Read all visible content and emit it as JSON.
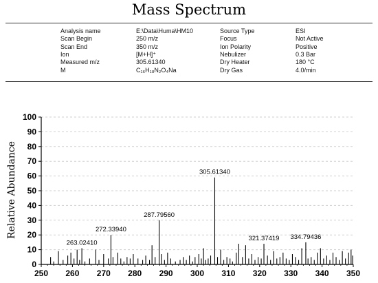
{
  "header": {
    "title": "Mass Spectrum"
  },
  "info": [
    [
      "Analysis name",
      "E:\\Data\\Huma\\HM10",
      "Source Type",
      "ESI"
    ],
    [
      "Scan Begin",
      "250 m/z",
      "Focus",
      "Not Active"
    ],
    [
      "Scan End",
      "350 m/z",
      "Ion Polarity",
      "Positive"
    ],
    [
      "Ion",
      "[M+H]⁺",
      "Nebulizer",
      "0.3 Bar"
    ],
    [
      "Measured m/z",
      "305.61340",
      "Dry Heater",
      "180 °C"
    ],
    [
      "M",
      "C₁₆H₁₈N₂O₄Na",
      "Dry Gas",
      "4.0/min"
    ]
  ],
  "chart_data": {
    "type": "bar",
    "title": "",
    "xlabel": "",
    "ylabel": "Relative Abundance",
    "xlim": [
      250,
      350
    ],
    "ylim": [
      0,
      100
    ],
    "xticks": [
      250,
      260,
      270,
      280,
      290,
      300,
      310,
      320,
      330,
      340,
      350
    ],
    "yticks": [
      0,
      10,
      20,
      30,
      40,
      50,
      60,
      70,
      80,
      90,
      100
    ],
    "peaks": [
      [
        253,
        5
      ],
      [
        254,
        2
      ],
      [
        255.5,
        9
      ],
      [
        257,
        3
      ],
      [
        258.5,
        6
      ],
      [
        259.5,
        8
      ],
      [
        260.5,
        4
      ],
      [
        261.5,
        10
      ],
      [
        262.3,
        3
      ],
      [
        263.02,
        11
      ],
      [
        264,
        2
      ],
      [
        265.5,
        4
      ],
      [
        267.5,
        10
      ],
      [
        268.5,
        3
      ],
      [
        270,
        7
      ],
      [
        271.5,
        4
      ],
      [
        272.34,
        20
      ],
      [
        273,
        5
      ],
      [
        274.5,
        8
      ],
      [
        275.5,
        4
      ],
      [
        276.5,
        2
      ],
      [
        277.5,
        5
      ],
      [
        278.5,
        4
      ],
      [
        279.5,
        7
      ],
      [
        281,
        4
      ],
      [
        282.5,
        3
      ],
      [
        283.5,
        6
      ],
      [
        284.7,
        3
      ],
      [
        285.5,
        13
      ],
      [
        286.5,
        5
      ],
      [
        287.8,
        30
      ],
      [
        288.5,
        7
      ],
      [
        289.5,
        3
      ],
      [
        290.5,
        8
      ],
      [
        291.5,
        4
      ],
      [
        293,
        2
      ],
      [
        294.5,
        3
      ],
      [
        295.5,
        5
      ],
      [
        296.5,
        3
      ],
      [
        297.5,
        6
      ],
      [
        298.5,
        2
      ],
      [
        299.3,
        5
      ],
      [
        300.5,
        7
      ],
      [
        301.3,
        4
      ],
      [
        302,
        11
      ],
      [
        302.7,
        3
      ],
      [
        303.5,
        4
      ],
      [
        304.3,
        6
      ],
      [
        305.61,
        59
      ],
      [
        306.5,
        5
      ],
      [
        307.5,
        10
      ],
      [
        308.5,
        3
      ],
      [
        309.5,
        5
      ],
      [
        310.5,
        4
      ],
      [
        311.3,
        2
      ],
      [
        312.5,
        8
      ],
      [
        313.3,
        14
      ],
      [
        314.5,
        5
      ],
      [
        315.5,
        13
      ],
      [
        316.5,
        4
      ],
      [
        317.5,
        7
      ],
      [
        318.5,
        3
      ],
      [
        319.5,
        5
      ],
      [
        320.5,
        4
      ],
      [
        321.37,
        14
      ],
      [
        322.5,
        6
      ],
      [
        323.5,
        3
      ],
      [
        324.5,
        9
      ],
      [
        325.5,
        4
      ],
      [
        326.5,
        5
      ],
      [
        327.5,
        8
      ],
      [
        328.5,
        4
      ],
      [
        329.5,
        3
      ],
      [
        330.5,
        7
      ],
      [
        331.5,
        5
      ],
      [
        332.5,
        3
      ],
      [
        333.5,
        11
      ],
      [
        334.79,
        15
      ],
      [
        335.5,
        4
      ],
      [
        336.5,
        5
      ],
      [
        337.5,
        3
      ],
      [
        338.5,
        8
      ],
      [
        339.5,
        11
      ],
      [
        340.5,
        4
      ],
      [
        341.5,
        6
      ],
      [
        342.5,
        3
      ],
      [
        343.5,
        8
      ],
      [
        344.5,
        5
      ],
      [
        345.5,
        3
      ],
      [
        346.5,
        9
      ],
      [
        347.5,
        4
      ],
      [
        348.5,
        8
      ],
      [
        349.3,
        10
      ],
      [
        349.8,
        6
      ]
    ],
    "annotations": [
      {
        "label": "263.02410",
        "x": 263.02,
        "y": 11
      },
      {
        "label": "272.33940",
        "x": 272.34,
        "y": 20
      },
      {
        "label": "287.79560",
        "x": 287.8,
        "y": 30
      },
      {
        "label": "305.61340",
        "x": 305.61,
        "y": 59
      },
      {
        "label": "321.37419",
        "x": 321.37,
        "y": 14
      },
      {
        "label": "334.79436",
        "x": 334.79,
        "y": 15
      }
    ]
  }
}
